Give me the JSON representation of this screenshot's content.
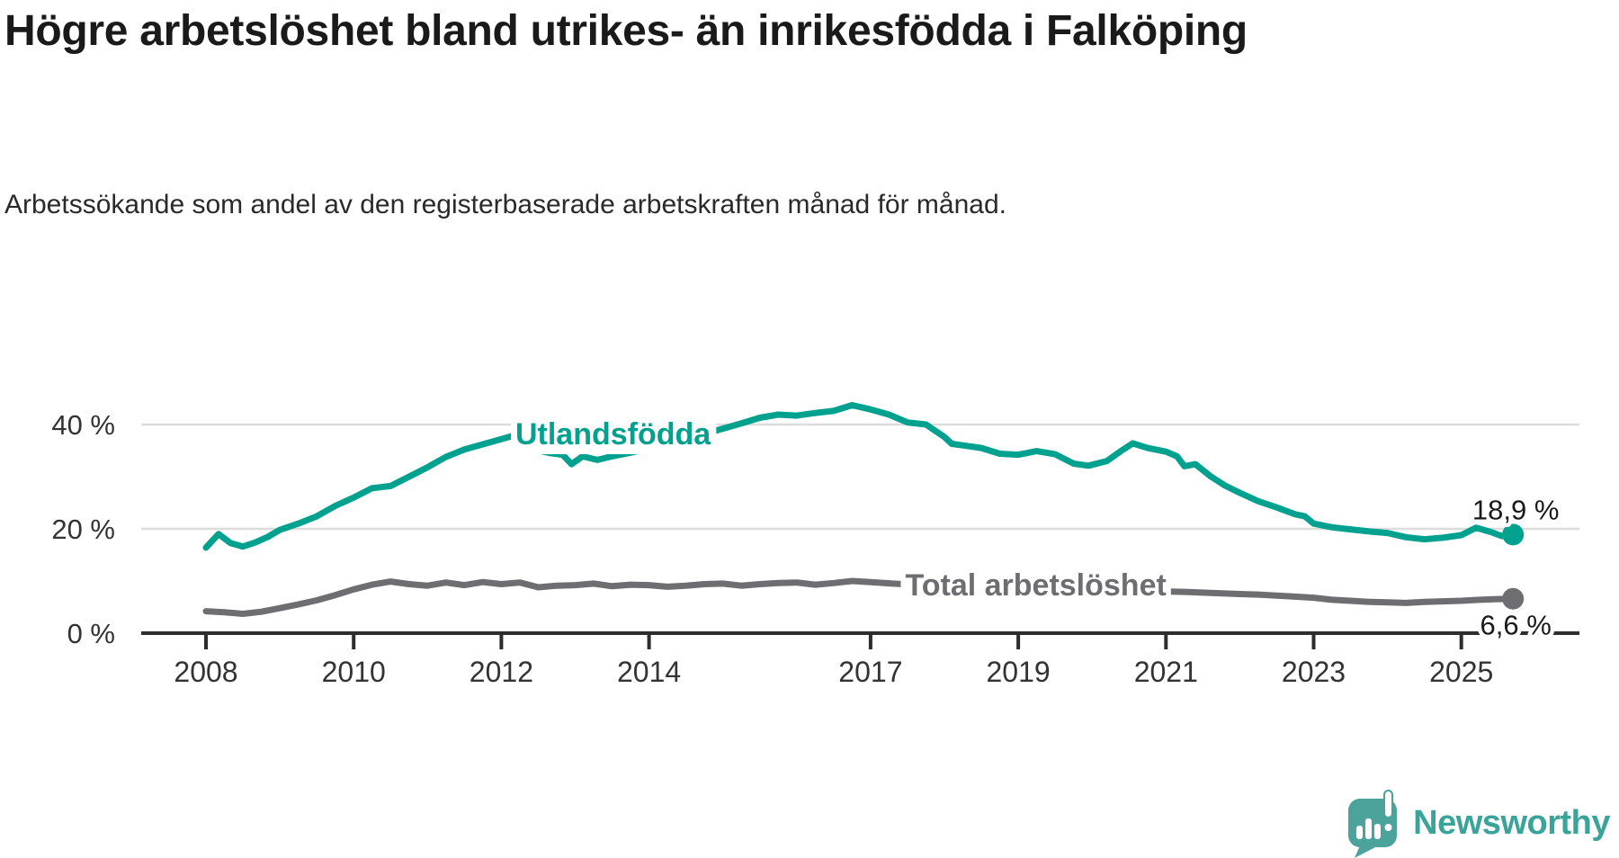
{
  "header": {
    "title": "Högre arbetslöshet bland utrikes- än inrikesfödda i Falköping",
    "subtitle": "Arbetssökande som andel av den registerbaserade arbetskraften månad för månad."
  },
  "footer": {
    "brand": "Newsworthy"
  },
  "colors": {
    "accent_teal": "#00a18e",
    "series_gray": "#6e6e72",
    "grid": "#dcdcdc",
    "axis": "#2d2d2d",
    "tick_text": "#333333",
    "logo_teal": "#4ba39c"
  },
  "chart_data": {
    "type": "line",
    "title": "Högre arbetslöshet bland utrikes- än inrikesfödda i Falköping",
    "xlabel": "",
    "ylabel": "",
    "unit": "%",
    "xlim": [
      2007.1,
      2026.6
    ],
    "ylim": [
      0,
      46
    ],
    "grid": "horizontal",
    "legend_position": "inline-labels",
    "xticks": [
      {
        "year": 2008,
        "label": "2008"
      },
      {
        "year": 2010,
        "label": "2010"
      },
      {
        "year": 2012,
        "label": "2012"
      },
      {
        "year": 2014,
        "label": "2014"
      },
      {
        "year": 2017,
        "label": "2017"
      },
      {
        "year": 2019,
        "label": "2019"
      },
      {
        "year": 2021,
        "label": "2021"
      },
      {
        "year": 2023,
        "label": "2023"
      },
      {
        "year": 2025,
        "label": "2025"
      }
    ],
    "yticks": [
      {
        "value": 0,
        "label": "0 %"
      },
      {
        "value": 20,
        "label": "20 %"
      },
      {
        "value": 40,
        "label": "40 %"
      }
    ],
    "series": [
      {
        "name": "Utlandsfödda",
        "color": "#00a18e",
        "end_label": "18,9 %",
        "last_value": 18.9,
        "points": [
          [
            2008.0,
            16.4
          ],
          [
            2008.17,
            19.0
          ],
          [
            2008.33,
            17.3
          ],
          [
            2008.5,
            16.6
          ],
          [
            2008.67,
            17.4
          ],
          [
            2008.83,
            18.4
          ],
          [
            2009.0,
            19.8
          ],
          [
            2009.25,
            21.0
          ],
          [
            2009.5,
            22.4
          ],
          [
            2009.75,
            24.4
          ],
          [
            2010.0,
            26.0
          ],
          [
            2010.25,
            27.8
          ],
          [
            2010.5,
            28.2
          ],
          [
            2010.75,
            30.0
          ],
          [
            2011.0,
            31.8
          ],
          [
            2011.25,
            33.8
          ],
          [
            2011.5,
            35.2
          ],
          [
            2011.75,
            36.2
          ],
          [
            2012.0,
            37.2
          ],
          [
            2012.17,
            37.9
          ],
          [
            2012.33,
            36.2
          ],
          [
            2012.5,
            35.0
          ],
          [
            2012.67,
            34.5
          ],
          [
            2012.83,
            34.2
          ],
          [
            2012.95,
            32.4
          ],
          [
            2013.1,
            33.9
          ],
          [
            2013.3,
            33.2
          ],
          [
            2013.5,
            33.9
          ],
          [
            2013.75,
            34.6
          ],
          [
            2014.0,
            35.4
          ],
          [
            2014.25,
            36.2
          ],
          [
            2014.5,
            37.0
          ],
          [
            2014.75,
            38.2
          ],
          [
            2015.0,
            39.2
          ],
          [
            2015.25,
            40.2
          ],
          [
            2015.5,
            41.3
          ],
          [
            2015.75,
            41.9
          ],
          [
            2016.0,
            41.7
          ],
          [
            2016.25,
            42.2
          ],
          [
            2016.5,
            42.6
          ],
          [
            2016.75,
            43.7
          ],
          [
            2017.0,
            42.9
          ],
          [
            2017.25,
            41.9
          ],
          [
            2017.5,
            40.4
          ],
          [
            2017.75,
            40.0
          ],
          [
            2018.0,
            37.6
          ],
          [
            2018.1,
            36.3
          ],
          [
            2018.25,
            36.0
          ],
          [
            2018.5,
            35.5
          ],
          [
            2018.75,
            34.4
          ],
          [
            2019.0,
            34.2
          ],
          [
            2019.25,
            34.9
          ],
          [
            2019.5,
            34.3
          ],
          [
            2019.75,
            32.5
          ],
          [
            2019.95,
            32.1
          ],
          [
            2020.2,
            33.0
          ],
          [
            2020.4,
            35.0
          ],
          [
            2020.55,
            36.4
          ],
          [
            2020.75,
            35.5
          ],
          [
            2021.0,
            34.8
          ],
          [
            2021.15,
            33.9
          ],
          [
            2021.25,
            32.0
          ],
          [
            2021.4,
            32.4
          ],
          [
            2021.6,
            30.1
          ],
          [
            2021.8,
            28.3
          ],
          [
            2022.0,
            26.9
          ],
          [
            2022.25,
            25.3
          ],
          [
            2022.5,
            24.1
          ],
          [
            2022.75,
            22.8
          ],
          [
            2022.88,
            22.4
          ],
          [
            2023.0,
            21.0
          ],
          [
            2023.25,
            20.3
          ],
          [
            2023.5,
            19.9
          ],
          [
            2023.75,
            19.5
          ],
          [
            2024.0,
            19.2
          ],
          [
            2024.25,
            18.4
          ],
          [
            2024.5,
            18.0
          ],
          [
            2024.75,
            18.3
          ],
          [
            2025.0,
            18.8
          ],
          [
            2025.2,
            20.2
          ],
          [
            2025.4,
            19.4
          ],
          [
            2025.55,
            18.6
          ],
          [
            2025.7,
            18.9
          ]
        ]
      },
      {
        "name": "Total arbetslöshet",
        "color": "#6e6e72",
        "end_label": "6,6 %",
        "last_value": 6.6,
        "points": [
          [
            2008.0,
            4.2
          ],
          [
            2008.25,
            4.0
          ],
          [
            2008.5,
            3.7
          ],
          [
            2008.75,
            4.1
          ],
          [
            2009.0,
            4.8
          ],
          [
            2009.25,
            5.5
          ],
          [
            2009.5,
            6.3
          ],
          [
            2009.75,
            7.3
          ],
          [
            2010.0,
            8.4
          ],
          [
            2010.25,
            9.3
          ],
          [
            2010.5,
            9.9
          ],
          [
            2010.75,
            9.4
          ],
          [
            2011.0,
            9.1
          ],
          [
            2011.25,
            9.7
          ],
          [
            2011.5,
            9.2
          ],
          [
            2011.75,
            9.8
          ],
          [
            2012.0,
            9.4
          ],
          [
            2012.25,
            9.7
          ],
          [
            2012.5,
            8.8
          ],
          [
            2012.75,
            9.1
          ],
          [
            2013.0,
            9.2
          ],
          [
            2013.25,
            9.5
          ],
          [
            2013.5,
            9.0
          ],
          [
            2013.75,
            9.3
          ],
          [
            2014.0,
            9.2
          ],
          [
            2014.25,
            8.9
          ],
          [
            2014.5,
            9.1
          ],
          [
            2014.75,
            9.4
          ],
          [
            2015.0,
            9.5
          ],
          [
            2015.25,
            9.1
          ],
          [
            2015.5,
            9.4
          ],
          [
            2015.75,
            9.6
          ],
          [
            2016.0,
            9.7
          ],
          [
            2016.25,
            9.3
          ],
          [
            2016.5,
            9.6
          ],
          [
            2016.75,
            10.0
          ],
          [
            2017.0,
            9.8
          ],
          [
            2017.3,
            9.5
          ],
          [
            2017.6,
            9.3
          ],
          [
            2018.0,
            9.1
          ],
          [
            2018.4,
            8.9
          ],
          [
            2018.8,
            8.7
          ],
          [
            2019.2,
            8.6
          ],
          [
            2019.6,
            8.4
          ],
          [
            2020.0,
            8.3
          ],
          [
            2020.2,
            8.2
          ],
          [
            2020.4,
            8.5
          ],
          [
            2020.6,
            8.3
          ],
          [
            2020.8,
            8.1
          ],
          [
            2021.0,
            8.0
          ],
          [
            2021.3,
            7.9
          ],
          [
            2021.6,
            7.7
          ],
          [
            2022.0,
            7.5
          ],
          [
            2022.25,
            7.4
          ],
          [
            2022.5,
            7.2
          ],
          [
            2022.75,
            7.0
          ],
          [
            2023.0,
            6.8
          ],
          [
            2023.25,
            6.4
          ],
          [
            2023.5,
            6.2
          ],
          [
            2023.75,
            6.0
          ],
          [
            2024.0,
            5.9
          ],
          [
            2024.25,
            5.8
          ],
          [
            2024.5,
            6.0
          ],
          [
            2024.75,
            6.1
          ],
          [
            2025.0,
            6.2
          ],
          [
            2025.25,
            6.4
          ],
          [
            2025.45,
            6.5
          ],
          [
            2025.7,
            6.6
          ]
        ]
      }
    ],
    "annotations": [
      {
        "series": 0,
        "year": 2012.19,
        "value": 36.2
      },
      {
        "series": 1,
        "year": 2017.47,
        "value": 7.24
      }
    ]
  }
}
